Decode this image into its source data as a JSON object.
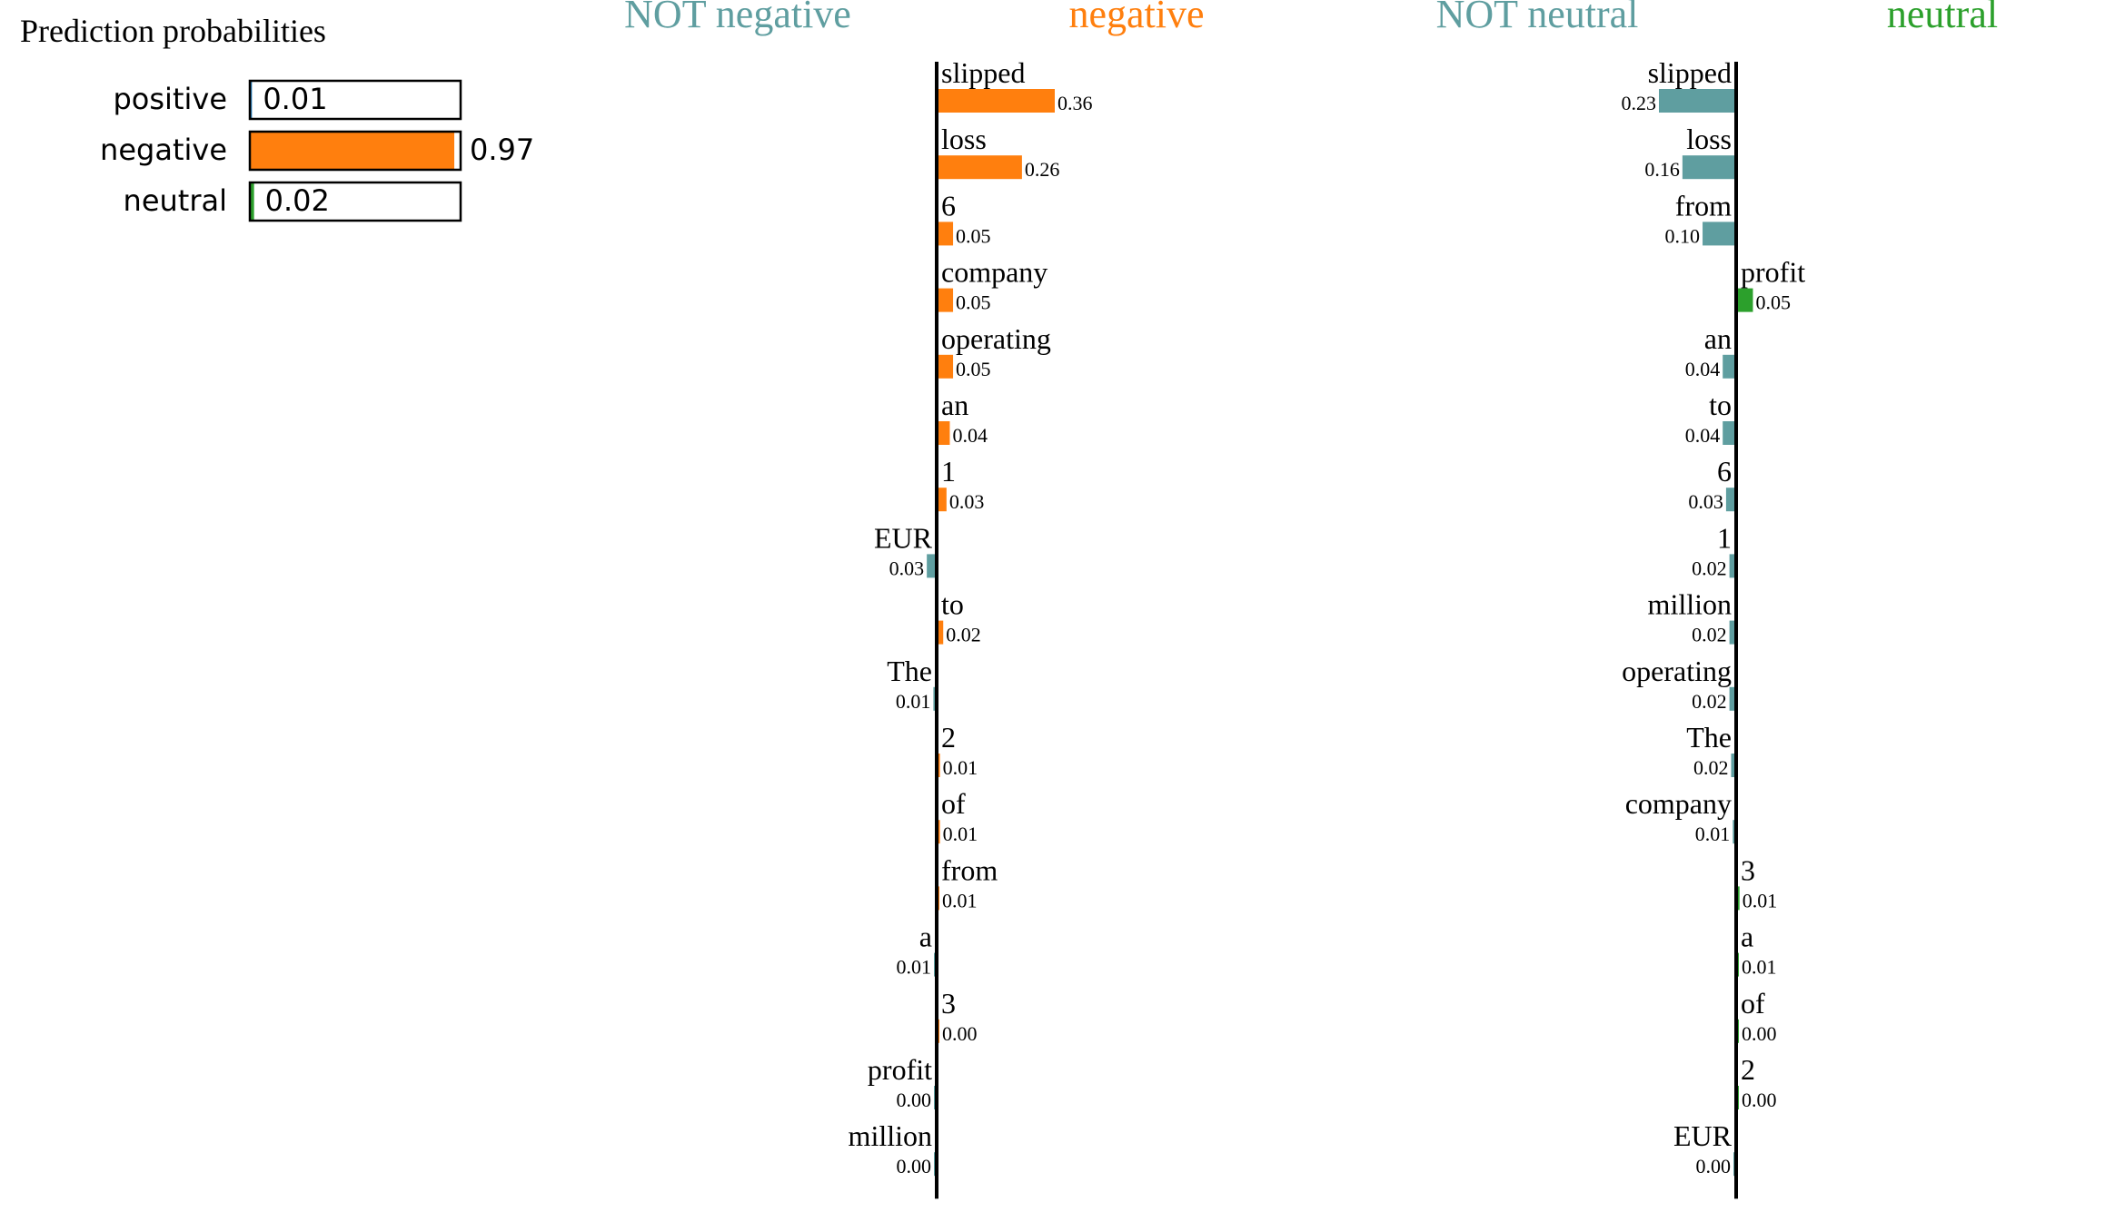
{
  "probabilities": {
    "title": "Prediction probabilities",
    "items": [
      {
        "label": "positive",
        "value": 0.01,
        "value_text": "0.01",
        "color": "#1f77b4"
      },
      {
        "label": "negative",
        "value": 0.97,
        "value_text": "0.97",
        "color": "#ff7f0e"
      },
      {
        "label": "neutral",
        "value": 0.02,
        "value_text": "0.02",
        "color": "#2ca02c"
      }
    ]
  },
  "chart_data": [
    {
      "type": "bar",
      "orientation": "horizontal",
      "left_header": "NOT negative",
      "right_header": "negative",
      "left_color": "#5f9ea0",
      "right_color": "#ff7f0e",
      "xlim": [
        -0.36,
        0.36
      ],
      "features": [
        {
          "word": "slipped",
          "weight": 0.36,
          "label": "0.36"
        },
        {
          "word": "loss",
          "weight": 0.26,
          "label": "0.26"
        },
        {
          "word": "6",
          "weight": 0.05,
          "label": "0.05"
        },
        {
          "word": "company",
          "weight": 0.05,
          "label": "0.05"
        },
        {
          "word": "operating",
          "weight": 0.05,
          "label": "0.05"
        },
        {
          "word": "an",
          "weight": 0.04,
          "label": "0.04"
        },
        {
          "word": "1",
          "weight": 0.03,
          "label": "0.03"
        },
        {
          "word": "EUR",
          "weight": -0.03,
          "label": "0.03"
        },
        {
          "word": "to",
          "weight": 0.02,
          "label": "0.02"
        },
        {
          "word": "The",
          "weight": -0.01,
          "label": "0.01"
        },
        {
          "word": "2",
          "weight": 0.01,
          "label": "0.01"
        },
        {
          "word": "of",
          "weight": 0.01,
          "label": "0.01"
        },
        {
          "word": "from",
          "weight": 0.005,
          "label": "0.01"
        },
        {
          "word": "a",
          "weight": -0.005,
          "label": "0.01"
        },
        {
          "word": "3",
          "weight": 0.002,
          "label": "0.00"
        },
        {
          "word": "profit",
          "weight": -0.002,
          "label": "0.00"
        },
        {
          "word": "million",
          "weight": -0.001,
          "label": "0.00"
        }
      ]
    },
    {
      "type": "bar",
      "orientation": "horizontal",
      "left_header": "NOT neutral",
      "right_header": "neutral",
      "left_color": "#5f9ea0",
      "right_color": "#2ca02c",
      "xlim": [
        -0.23,
        0.23
      ],
      "features": [
        {
          "word": "slipped",
          "weight": -0.23,
          "label": "0.23"
        },
        {
          "word": "loss",
          "weight": -0.16,
          "label": "0.16"
        },
        {
          "word": "from",
          "weight": -0.1,
          "label": "0.10"
        },
        {
          "word": "profit",
          "weight": 0.05,
          "label": "0.05"
        },
        {
          "word": "an",
          "weight": -0.04,
          "label": "0.04"
        },
        {
          "word": "to",
          "weight": -0.04,
          "label": "0.04"
        },
        {
          "word": "6",
          "weight": -0.03,
          "label": "0.03"
        },
        {
          "word": "1",
          "weight": -0.02,
          "label": "0.02"
        },
        {
          "word": "million",
          "weight": -0.02,
          "label": "0.02"
        },
        {
          "word": "operating",
          "weight": -0.02,
          "label": "0.02"
        },
        {
          "word": "The",
          "weight": -0.015,
          "label": "0.02"
        },
        {
          "word": "company",
          "weight": -0.01,
          "label": "0.01"
        },
        {
          "word": "3",
          "weight": 0.01,
          "label": "0.01"
        },
        {
          "word": "a",
          "weight": 0.005,
          "label": "0.01"
        },
        {
          "word": "of",
          "weight": 0.002,
          "label": "0.00"
        },
        {
          "word": "2",
          "weight": 0.002,
          "label": "0.00"
        },
        {
          "word": "EUR",
          "weight": -0.001,
          "label": "0.00"
        }
      ]
    }
  ]
}
